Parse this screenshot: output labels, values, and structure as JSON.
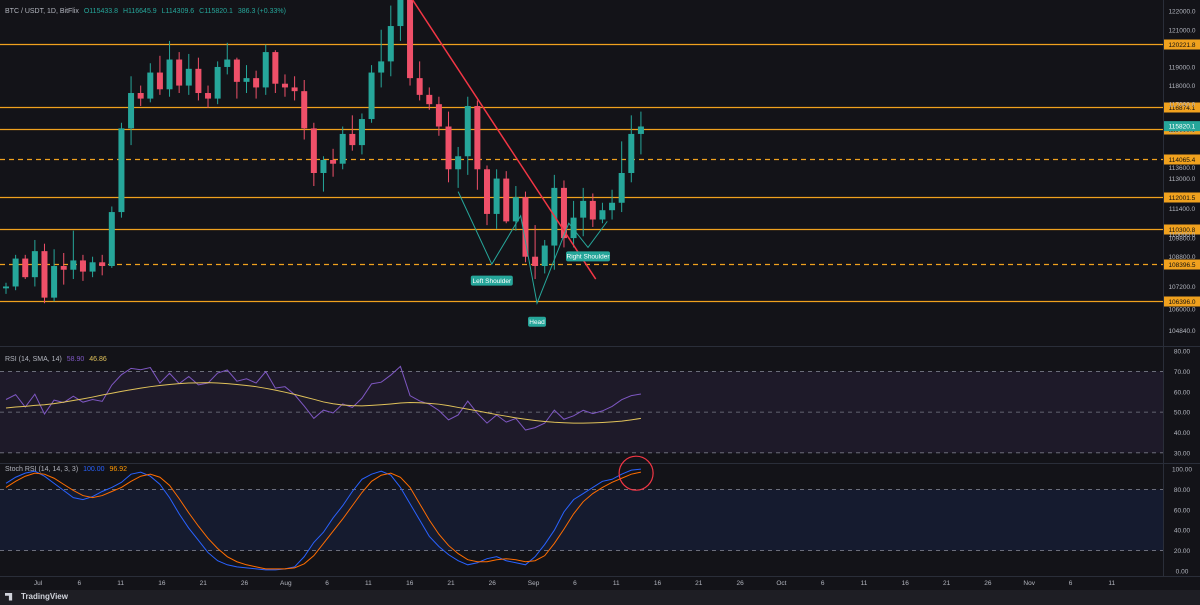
{
  "legend": {
    "symbol": "BTC / USDT, 1D, BitFlix",
    "open": "O115433.8",
    "high": "H116645.9",
    "low": "L114309.6",
    "close": "C115820.1",
    "change": "386.3 (+0.33%)",
    "rsi_label": "RSI (14, SMA, 14)",
    "rsi_value": "58.90",
    "rsi_sma": "46.86",
    "stoch_label": "Stoch RSI (14, 14, 3, 3)",
    "stoch_k": "100.00",
    "stoch_d": "96.92"
  },
  "colors": {
    "bg": "#131318",
    "up": "#26a69a",
    "down": "#ef5069",
    "level": "#f0a11e",
    "trendline": "#f23645",
    "pattern": "#26a69a",
    "rsi": "#7e57c2",
    "rsi_sma": "#e0c25a",
    "stoch_k": "#2962ff",
    "stoch_d": "#ff6d00",
    "circle": "#f23645"
  },
  "price_axis": [
    "122000.0",
    "121000.0",
    "119000.0",
    "118000.0",
    "117000.0",
    "115600.0",
    "113600.0",
    "113000.0",
    "111400.0",
    "110000.0",
    "109800.0",
    "108800.0",
    "107200.0",
    "106000.0",
    "104840.0"
  ],
  "price_levels": [
    {
      "label": "120221.8",
      "value": 120221.8,
      "style": "solid"
    },
    {
      "label": "116874.1",
      "value": 116874.1,
      "style": "solid"
    },
    {
      "label": "115688.5",
      "value": 115688.5,
      "style": "solid"
    },
    {
      "label": "114065.4",
      "value": 114065.4,
      "style": "dashed"
    },
    {
      "label": "112001.5",
      "value": 112001.5,
      "style": "solid"
    },
    {
      "label": "110300.8",
      "value": 110300.8,
      "style": "solid"
    },
    {
      "label": "108396.5",
      "value": 108396.5,
      "style": "dashed"
    },
    {
      "label": "106396.0",
      "value": 106396.0,
      "style": "solid"
    }
  ],
  "last_price": {
    "label": "115820.1",
    "value": 115820.1
  },
  "pattern_labels": {
    "left": "Left Shoulder",
    "head": "Head",
    "right": "Right Shoulder"
  },
  "rsi_axis": [
    "80.00",
    "70.00",
    "60.00",
    "50.00",
    "40.00",
    "30.00"
  ],
  "stoch_axis": [
    "100.00",
    "80.00",
    "60.00",
    "40.00",
    "20.00",
    "0.00"
  ],
  "time_axis": [
    "Jul",
    "6",
    "11",
    "16",
    "21",
    "26",
    "Aug",
    "6",
    "11",
    "16",
    "21",
    "26",
    "Sep",
    "6",
    "11",
    "16",
    "21",
    "26",
    "Oct",
    "6",
    "11",
    "16",
    "21",
    "26",
    "Nov",
    "6",
    "11"
  ],
  "footer": {
    "brand": "TradingView"
  },
  "chart_data": {
    "type": "candlestick",
    "price_range": [
      104000,
      122600
    ],
    "rsi_range": [
      25,
      80
    ],
    "stoch_range": [
      -5,
      105
    ],
    "candles": [
      [
        107100,
        107400,
        106800,
        107200
      ],
      [
        107200,
        108900,
        107000,
        108700
      ],
      [
        108700,
        108900,
        107600,
        107700
      ],
      [
        107700,
        109700,
        107200,
        109100
      ],
      [
        109100,
        109500,
        106300,
        106600
      ],
      [
        106600,
        109200,
        106400,
        108300
      ],
      [
        108300,
        109000,
        107300,
        108100
      ],
      [
        108100,
        110200,
        107600,
        108600
      ],
      [
        108600,
        108900,
        107500,
        108000
      ],
      [
        108000,
        108800,
        107700,
        108500
      ],
      [
        108500,
        108900,
        107800,
        108300
      ],
      [
        108300,
        111500,
        108200,
        111200
      ],
      [
        111200,
        116000,
        110900,
        115700
      ],
      [
        115700,
        118500,
        114800,
        117600
      ],
      [
        117600,
        118000,
        116900,
        117300
      ],
      [
        117300,
        119200,
        117100,
        118700
      ],
      [
        118700,
        119600,
        117500,
        117800
      ],
      [
        117800,
        120400,
        117400,
        119400
      ],
      [
        119400,
        119800,
        117600,
        118000
      ],
      [
        118000,
        119700,
        117500,
        118900
      ],
      [
        118900,
        119500,
        117200,
        117600
      ],
      [
        117600,
        118000,
        116800,
        117300
      ],
      [
        117300,
        119300,
        117000,
        119000
      ],
      [
        119000,
        120300,
        118600,
        119400
      ],
      [
        119400,
        119500,
        117300,
        118200
      ],
      [
        118200,
        119100,
        117600,
        118400
      ],
      [
        118400,
        118800,
        117300,
        117900
      ],
      [
        117900,
        120200,
        117500,
        119800
      ],
      [
        119800,
        119900,
        117600,
        118100
      ],
      [
        118100,
        118600,
        117400,
        117900
      ],
      [
        117900,
        118500,
        117200,
        117700
      ],
      [
        117700,
        118300,
        115100,
        115700
      ],
      [
        115700,
        116000,
        112600,
        113300
      ],
      [
        113300,
        114200,
        112300,
        114000
      ],
      [
        114000,
        114600,
        113100,
        113800
      ],
      [
        113800,
        115800,
        113500,
        115400
      ],
      [
        115400,
        116400,
        114500,
        114800
      ],
      [
        114800,
        116500,
        114300,
        116200
      ],
      [
        116200,
        119100,
        116000,
        118700
      ],
      [
        118700,
        121000,
        117900,
        119300
      ],
      [
        119300,
        122300,
        118500,
        121200
      ],
      [
        121200,
        124500,
        120400,
        123300
      ],
      [
        123300,
        123700,
        118000,
        118400
      ],
      [
        118400,
        119300,
        117200,
        117500
      ],
      [
        117500,
        117900,
        116700,
        117000
      ],
      [
        117000,
        117400,
        115300,
        115800
      ],
      [
        115800,
        116600,
        112800,
        113500
      ],
      [
        113500,
        114700,
        112500,
        114200
      ],
      [
        114200,
        117400,
        113200,
        116900
      ],
      [
        116900,
        117200,
        112400,
        113500
      ],
      [
        113500,
        113700,
        110500,
        111100
      ],
      [
        111100,
        113500,
        110300,
        113000
      ],
      [
        113000,
        113400,
        110600,
        110700
      ],
      [
        110700,
        112600,
        110200,
        112000
      ],
      [
        112000,
        112300,
        108500,
        108800
      ],
      [
        108800,
        110500,
        107600,
        108300
      ],
      [
        108300,
        109700,
        107900,
        109400
      ],
      [
        109400,
        113200,
        108100,
        112500
      ],
      [
        112500,
        112900,
        109300,
        109800
      ],
      [
        109800,
        111800,
        109300,
        110900
      ],
      [
        110900,
        112500,
        109900,
        111800
      ],
      [
        111800,
        112200,
        110400,
        110800
      ],
      [
        110800,
        111700,
        110600,
        111300
      ],
      [
        111300,
        112400,
        110800,
        111700
      ],
      [
        111700,
        115000,
        111200,
        113300
      ],
      [
        113300,
        116400,
        112800,
        115400
      ],
      [
        115400,
        116600,
        114300,
        115800
      ]
    ],
    "rsi": [
      56.2,
      58.6,
      52.5,
      58.8,
      49.1,
      55.9,
      54.7,
      57.8,
      54.9,
      56.2,
      55.3,
      63.3,
      68.4,
      71.5,
      70.8,
      71.9,
      64.3,
      69.1,
      64.0,
      67.5,
      63.4,
      64.3,
      69.2,
      70.7,
      65.2,
      66.4,
      64.3,
      69.9,
      61.8,
      62.5,
      58.6,
      53.0,
      46.9,
      51.0,
      49.6,
      54.0,
      52.3,
      56.8,
      63.9,
      64.7,
      68.2,
      72.5,
      58.1,
      55.5,
      53.9,
      50.8,
      46.2,
      48.6,
      55.4,
      49.4,
      44.6,
      48.6,
      45.1,
      46.9,
      41.2,
      42.4,
      44.6,
      51.0,
      46.5,
      48.2,
      50.9,
      49.3,
      50.6,
      52.8,
      56.1,
      58.1,
      58.9
    ],
    "rsi_sma": [
      52.0,
      52.5,
      52.8,
      53.3,
      53.6,
      54.2,
      54.9,
      55.7,
      56.5,
      57.4,
      58.4,
      59.3,
      60.2,
      61.0,
      61.8,
      62.5,
      63.1,
      63.6,
      64.0,
      64.3,
      64.4,
      64.5,
      64.3,
      64.0,
      63.6,
      63.1,
      62.5,
      61.7,
      60.8,
      59.8,
      58.7,
      57.5,
      56.3,
      55.0,
      54.1,
      53.5,
      53.2,
      53.1,
      53.3,
      53.6,
      54.0,
      54.5,
      54.7,
      54.6,
      54.3,
      53.9,
      53.2,
      52.3,
      51.5,
      50.6,
      49.7,
      48.8,
      48.0,
      47.2,
      46.5,
      45.9,
      45.4,
      45.0,
      44.8,
      44.6,
      44.6,
      44.7,
      44.9,
      45.2,
      45.6,
      46.2,
      46.9
    ],
    "stoch_k": [
      86,
      92,
      96,
      98,
      93,
      86,
      79,
      72,
      70,
      73,
      78,
      82,
      87,
      95,
      97,
      93,
      85,
      72,
      56,
      42,
      30,
      18,
      10,
      6,
      4,
      3,
      2,
      1,
      1,
      2,
      4,
      14,
      28,
      38,
      52,
      64,
      78,
      90,
      95,
      98,
      94,
      82,
      66,
      50,
      34,
      24,
      16,
      10,
      6,
      8,
      12,
      14,
      10,
      8,
      6,
      14,
      26,
      40,
      58,
      70,
      76,
      82,
      88,
      90,
      95,
      99,
      100
    ],
    "stoch_d": [
      82,
      88,
      93,
      96,
      95,
      91,
      85,
      79,
      74,
      72,
      74,
      78,
      82,
      88,
      93,
      95,
      92,
      84,
      71,
      57,
      44,
      32,
      22,
      14,
      9,
      6,
      4,
      2,
      2,
      2,
      3,
      7,
      15,
      27,
      39,
      51,
      64,
      77,
      88,
      94,
      96,
      92,
      82,
      66,
      50,
      36,
      25,
      17,
      11,
      9,
      9,
      11,
      12,
      11,
      9,
      10,
      15,
      27,
      41,
      56,
      68,
      76,
      82,
      87,
      91,
      95,
      97
    ]
  }
}
